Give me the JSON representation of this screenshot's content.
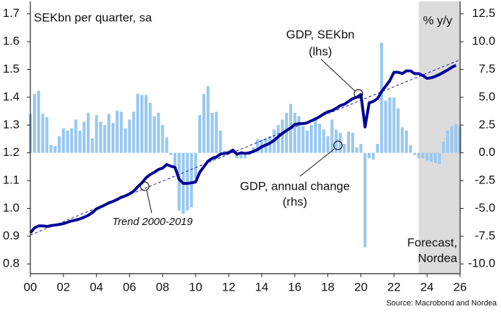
{
  "chart_data": {
    "type": "combo",
    "title": "SEKbn per quarter, sa",
    "y2_title": "% y/y",
    "source": "Source: Macrobond and Nordea",
    "annotations": {
      "gdp_level": [
        "GDP, SEKbn",
        "(lhs)"
      ],
      "gdp_change": [
        "GDP, annual change",
        "(rhs)"
      ],
      "trend": [
        "Trend 2000-2019"
      ],
      "forecast": [
        "Forecast,",
        "Nordea"
      ]
    },
    "forecast_start": 2023.5,
    "forecast_color": "#dcdcdc",
    "xlim": [
      2000,
      2026
    ],
    "xticks": [
      {
        "value": 2000,
        "label": "00"
      },
      {
        "value": 2002,
        "label": "02"
      },
      {
        "value": 2004,
        "label": "04"
      },
      {
        "value": 2006,
        "label": "06"
      },
      {
        "value": 2008,
        "label": "08"
      },
      {
        "value": 2010,
        "label": "10"
      },
      {
        "value": 2012,
        "label": "12"
      },
      {
        "value": 2014,
        "label": "14"
      },
      {
        "value": 2016,
        "label": "16"
      },
      {
        "value": 2018,
        "label": "18"
      },
      {
        "value": 2020,
        "label": "20"
      },
      {
        "value": 2022,
        "label": "22"
      },
      {
        "value": 2024,
        "label": "24"
      },
      {
        "value": 2026,
        "label": "26"
      }
    ],
    "ylim": [
      0.765,
      1.745
    ],
    "yticks": [
      0.8,
      0.9,
      {
        "value": 1,
        "label": "1.0"
      },
      1.1,
      1.2,
      1.3,
      1.4,
      1.5,
      1.6,
      1.7
    ],
    "y2lim": [
      -10.875,
      13.625
    ],
    "y2ticks": [
      12.5,
      {
        "value": 10,
        "label": "10.0"
      },
      7.5,
      {
        "value": 5,
        "label": "5.0"
      },
      2.5,
      {
        "value": 0,
        "label": "0.0"
      },
      -2.5,
      {
        "value": -5,
        "label": "-5.0"
      },
      -7.5,
      {
        "value": -10,
        "label": "-10.0"
      }
    ],
    "series": [
      {
        "type": "bar",
        "axis": "y2",
        "color": "#99c8f2",
        "x": [
          2000,
          2000.25,
          2000.5,
          2000.75,
          2001,
          2001.25,
          2001.5,
          2001.75,
          2002,
          2002.25,
          2002.5,
          2002.75,
          2003,
          2003.25,
          2003.5,
          2003.75,
          2004,
          2004.25,
          2004.5,
          2004.75,
          2005,
          2005.25,
          2005.5,
          2005.75,
          2006,
          2006.25,
          2006.5,
          2006.75,
          2007,
          2007.25,
          2007.5,
          2007.75,
          2008,
          2008.25,
          2008.5,
          2008.75,
          2009,
          2009.25,
          2009.5,
          2009.75,
          2010,
          2010.25,
          2010.5,
          2010.75,
          2011,
          2011.25,
          2011.5,
          2011.75,
          2012,
          2012.25,
          2012.5,
          2012.75,
          2013,
          2013.25,
          2013.5,
          2013.75,
          2014,
          2014.25,
          2014.5,
          2014.75,
          2015,
          2015.25,
          2015.5,
          2015.75,
          2016,
          2016.25,
          2016.5,
          2016.75,
          2017,
          2017.25,
          2017.5,
          2017.75,
          2018,
          2018.25,
          2018.5,
          2018.75,
          2019,
          2019.25,
          2019.5,
          2019.75,
          2020,
          2020.25,
          2020.5,
          2020.75,
          2021,
          2021.25,
          2021.5,
          2021.75,
          2022,
          2022.25,
          2022.5,
          2022.75,
          2023,
          2023.25,
          2023.5,
          2023.75,
          2024,
          2024.25,
          2024.5,
          2024.75,
          2025,
          2025.25,
          2025.5,
          2025.75,
          2026
        ],
        "values": [
          3.5,
          5.3,
          5.6,
          3.5,
          3.2,
          0.7,
          0.6,
          1.5,
          2.2,
          2.0,
          2.2,
          3.0,
          2.0,
          2.8,
          3.6,
          1.3,
          3.4,
          2.8,
          2.5,
          3.5,
          2.7,
          3.8,
          3.7,
          2.2,
          3.0,
          3.7,
          5.3,
          5.2,
          5.2,
          4.5,
          3.3,
          3.6,
          2.5,
          1.4,
          -0.2,
          -1.5,
          -5.2,
          -5.5,
          -5.2,
          -4.9,
          -2.3,
          3.4,
          5.3,
          6.0,
          3.6,
          3.7,
          2.0,
          0.2,
          0.2,
          0.3,
          -0.5,
          -0.5,
          -0.5,
          -0.2,
          0.5,
          1.2,
          1.2,
          1.3,
          1.5,
          2.1,
          2.5,
          3.0,
          3.6,
          4.4,
          3.6,
          3.3,
          2.4,
          2.0,
          2.5,
          3.0,
          2.6,
          2.1,
          1.5,
          3.0,
          2.1,
          1.8,
          0.8,
          1.9,
          1.8,
          0.5,
          0.8,
          -8.5,
          -0.5,
          -0.6,
          0.8,
          9.9,
          4.7,
          5.0,
          5.0,
          4.0,
          2.3,
          2.0,
          0.7,
          -0.2,
          -0.5,
          -0.5,
          -0.7,
          -0.8,
          -0.9,
          -1.0,
          1.0,
          2.0,
          2.4,
          2.6,
          2.4
        ]
      },
      {
        "type": "trend",
        "axis": "y",
        "color": "#1a1aa0",
        "x": [
          2000,
          2026
        ],
        "values": [
          0.904,
          1.535
        ]
      },
      {
        "type": "line",
        "axis": "y",
        "color": "#000096",
        "x": [
          2000,
          2000.25,
          2000.5,
          2000.75,
          2001,
          2001.25,
          2001.5,
          2001.75,
          2002,
          2002.25,
          2002.5,
          2002.75,
          2003,
          2003.25,
          2003.5,
          2003.75,
          2004,
          2004.25,
          2004.5,
          2004.75,
          2005,
          2005.25,
          2005.5,
          2005.75,
          2006,
          2006.25,
          2006.5,
          2006.75,
          2007,
          2007.25,
          2007.5,
          2007.75,
          2008,
          2008.25,
          2008.5,
          2008.75,
          2009,
          2009.25,
          2009.5,
          2009.75,
          2010,
          2010.25,
          2010.5,
          2010.75,
          2011,
          2011.25,
          2011.5,
          2011.75,
          2012,
          2012.25,
          2012.5,
          2012.75,
          2013,
          2013.25,
          2013.5,
          2013.75,
          2014,
          2014.25,
          2014.5,
          2014.75,
          2015,
          2015.25,
          2015.5,
          2015.75,
          2016,
          2016.25,
          2016.5,
          2016.75,
          2017,
          2017.25,
          2017.5,
          2017.75,
          2018,
          2018.25,
          2018.5,
          2018.75,
          2019,
          2019.25,
          2019.5,
          2019.75,
          2020,
          2020.25,
          2020.5,
          2020.75,
          2021,
          2021.25,
          2021.5,
          2021.75,
          2022,
          2022.25,
          2022.5,
          2022.75,
          2023,
          2023.25,
          2023.5,
          2023.75,
          2024,
          2024.25,
          2024.5,
          2024.75,
          2025,
          2025.25,
          2025.5,
          2025.75
        ],
        "values": [
          0.912,
          0.93,
          0.937,
          0.937,
          0.935,
          0.938,
          0.94,
          0.942,
          0.945,
          0.95,
          0.955,
          0.958,
          0.962,
          0.968,
          0.975,
          0.985,
          0.998,
          1.005,
          1.012,
          1.02,
          1.025,
          1.032,
          1.04,
          1.045,
          1.052,
          1.062,
          1.078,
          1.092,
          1.11,
          1.122,
          1.13,
          1.14,
          1.145,
          1.158,
          1.152,
          1.148,
          1.105,
          1.09,
          1.09,
          1.092,
          1.095,
          1.13,
          1.15,
          1.17,
          1.18,
          1.185,
          1.195,
          1.198,
          1.2,
          1.21,
          1.195,
          1.2,
          1.198,
          1.2,
          1.205,
          1.212,
          1.222,
          1.228,
          1.235,
          1.245,
          1.258,
          1.27,
          1.28,
          1.29,
          1.302,
          1.305,
          1.305,
          1.308,
          1.315,
          1.322,
          1.33,
          1.34,
          1.348,
          1.352,
          1.36,
          1.37,
          1.375,
          1.385,
          1.395,
          1.4,
          1.41,
          1.293,
          1.38,
          1.385,
          1.395,
          1.42,
          1.44,
          1.46,
          1.49,
          1.49,
          1.485,
          1.495,
          1.495,
          1.485,
          1.485,
          1.478,
          1.468,
          1.47,
          1.475,
          1.482,
          1.49,
          1.498,
          1.508,
          1.515
        ]
      }
    ]
  }
}
